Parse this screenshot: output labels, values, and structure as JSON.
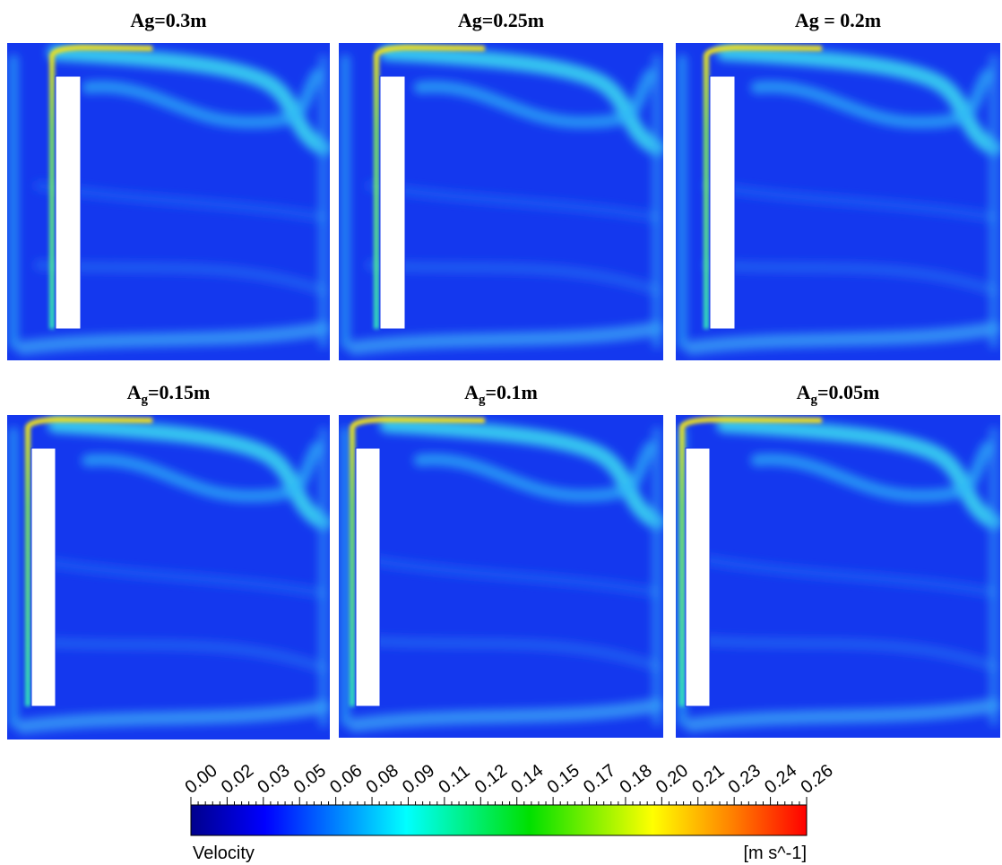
{
  "panels": [
    {
      "title": "Ag=0.3m"
    },
    {
      "title": "Ag=0.25m"
    },
    {
      "title": "Ag = 0.2m"
    },
    {
      "title": {
        "base": "A",
        "sub": "g",
        "text": "=0.15m"
      }
    },
    {
      "title": {
        "base": "A",
        "sub": "g",
        "text": "=0.1m"
      }
    },
    {
      "title": {
        "base": "A",
        "sub": "g",
        "text": "=0.05m"
      }
    }
  ],
  "colorbar": {
    "label": "Velocity",
    "unit": "[m s^-1]",
    "ticks": [
      "0.00",
      "0.02",
      "0.03",
      "0.05",
      "0.06",
      "0.08",
      "0.09",
      "0.11",
      "0.12",
      "0.14",
      "0.15",
      "0.17",
      "0.18",
      "0.20",
      "0.21",
      "0.23",
      "0.24",
      "0.26"
    ]
  }
}
